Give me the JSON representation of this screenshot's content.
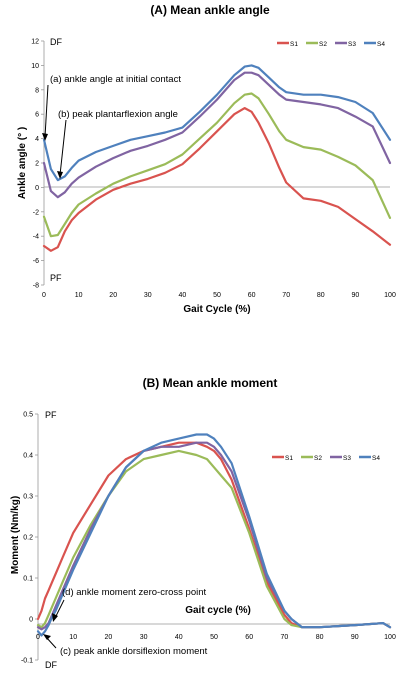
{
  "chart_data": [
    {
      "type": "line",
      "title": "(A) Mean ankle angle",
      "xlabel": "Gait Cycle (%)",
      "ylabel": "Ankle angle (° )",
      "xlim": [
        0,
        100
      ],
      "ylim": [
        -8,
        12
      ],
      "xticks": [
        0,
        10,
        20,
        30,
        40,
        50,
        60,
        70,
        80,
        90,
        100
      ],
      "yticks": [
        -8,
        -6,
        -4,
        -2,
        0,
        2,
        4,
        6,
        8,
        10,
        12
      ],
      "grid": false,
      "legend_position": "top-right",
      "top_axis_label": "DF",
      "bottom_axis_label": "PF",
      "x": [
        0,
        2,
        4,
        6,
        8,
        10,
        15,
        20,
        25,
        30,
        35,
        40,
        45,
        50,
        55,
        58,
        60,
        62,
        65,
        68,
        70,
        75,
        80,
        85,
        90,
        95,
        100
      ],
      "series": [
        {
          "name": "S1",
          "color": "#d9534f",
          "values": [
            -4.8,
            -5.2,
            -4.9,
            -3.6,
            -2.7,
            -2.1,
            -1.0,
            -0.2,
            0.3,
            0.7,
            1.2,
            1.9,
            3.2,
            4.6,
            6.0,
            6.5,
            6.2,
            5.3,
            3.6,
            1.6,
            0.4,
            -0.9,
            -1.1,
            -1.6,
            -2.6,
            -3.6,
            -4.7
          ]
        },
        {
          "name": "S2",
          "color": "#9bbb59",
          "values": [
            -2.4,
            -4.0,
            -3.9,
            -3.0,
            -2.1,
            -1.4,
            -0.5,
            0.3,
            0.9,
            1.4,
            1.9,
            2.7,
            4.0,
            5.3,
            6.9,
            7.6,
            7.7,
            7.3,
            6.0,
            4.6,
            3.9,
            3.3,
            3.1,
            2.5,
            1.8,
            0.6,
            -2.5
          ]
        },
        {
          "name": "S3",
          "color": "#8064a2",
          "values": [
            2.0,
            -0.3,
            -0.8,
            -0.4,
            0.3,
            0.8,
            1.7,
            2.4,
            3.0,
            3.4,
            3.9,
            4.5,
            5.8,
            7.2,
            8.8,
            9.4,
            9.4,
            9.2,
            8.4,
            7.6,
            7.2,
            7.0,
            6.8,
            6.5,
            5.8,
            5.0,
            2.0
          ]
        },
        {
          "name": "S4",
          "color": "#4f81bd",
          "values": [
            3.9,
            1.5,
            0.6,
            0.9,
            1.6,
            2.2,
            2.9,
            3.4,
            3.9,
            4.2,
            4.5,
            4.9,
            6.2,
            7.6,
            9.2,
            9.9,
            10.0,
            9.8,
            9.0,
            8.2,
            7.8,
            7.6,
            7.6,
            7.4,
            7.0,
            6.1,
            3.9
          ]
        }
      ],
      "annotations": [
        {
          "text": "(a) ankle angle at initial contact",
          "x": 0,
          "y": 3.9
        },
        {
          "text": "(b) peak plantarflexion angle",
          "x": 5,
          "y": 0.6
        }
      ]
    },
    {
      "type": "line",
      "title": "(B) Mean ankle moment",
      "xlabel": "Gait cycle (%)",
      "ylabel": "Moment (Nm/kg)",
      "xlim": [
        0,
        100
      ],
      "ylim": [
        -0.1,
        0.5
      ],
      "xticks": [
        0,
        10,
        20,
        30,
        40,
        50,
        60,
        70,
        80,
        90,
        100
      ],
      "yticks": [
        -0.1,
        0,
        0.1,
        0.2,
        0.3,
        0.4,
        0.5
      ],
      "ytick_labels": [
        "-0.1",
        "0",
        "0.1",
        "0.2",
        "0.3",
        "0.4",
        "0.5"
      ],
      "grid": false,
      "legend_position": "top-right",
      "top_axis_label": "PF",
      "bottom_axis_label": "DF",
      "x": [
        0,
        1,
        2,
        3,
        4,
        5,
        7,
        10,
        15,
        20,
        25,
        30,
        35,
        40,
        45,
        48,
        50,
        52,
        55,
        60,
        65,
        70,
        72,
        75,
        80,
        90,
        98,
        100
      ],
      "series": [
        {
          "name": "S1",
          "color": "#d9534f",
          "values": [
            0.0,
            0.02,
            0.05,
            0.07,
            0.09,
            0.11,
            0.15,
            0.21,
            0.28,
            0.35,
            0.39,
            0.41,
            0.42,
            0.43,
            0.43,
            0.42,
            0.41,
            0.39,
            0.34,
            0.22,
            0.09,
            0.01,
            -0.01,
            -0.02,
            -0.02,
            -0.015,
            -0.01,
            -0.02
          ]
        },
        {
          "name": "S2",
          "color": "#9bbb59",
          "values": [
            -0.015,
            -0.02,
            -0.01,
            0.01,
            0.03,
            0.05,
            0.09,
            0.15,
            0.23,
            0.3,
            0.36,
            0.39,
            0.4,
            0.41,
            0.4,
            0.39,
            0.37,
            0.35,
            0.32,
            0.21,
            0.08,
            0.0,
            -0.015,
            -0.02,
            -0.02,
            -0.015,
            -0.01,
            -0.02
          ]
        },
        {
          "name": "S3",
          "color": "#8064a2",
          "values": [
            -0.02,
            -0.025,
            -0.02,
            -0.01,
            0.01,
            0.03,
            0.07,
            0.13,
            0.22,
            0.3,
            0.37,
            0.41,
            0.42,
            0.42,
            0.43,
            0.43,
            0.42,
            0.4,
            0.36,
            0.24,
            0.1,
            0.02,
            0.0,
            -0.02,
            -0.02,
            -0.015,
            -0.01,
            -0.02
          ]
        },
        {
          "name": "S4",
          "color": "#4f81bd",
          "values": [
            -0.03,
            -0.04,
            -0.03,
            -0.015,
            0.005,
            0.02,
            0.06,
            0.12,
            0.21,
            0.3,
            0.37,
            0.41,
            0.43,
            0.44,
            0.45,
            0.45,
            0.44,
            0.42,
            0.38,
            0.25,
            0.11,
            0.02,
            0.0,
            -0.02,
            -0.02,
            -0.015,
            -0.01,
            -0.02
          ]
        }
      ],
      "annotations": [
        {
          "text": "(d) ankle moment zero-cross point",
          "x": 4,
          "y": 0.0
        },
        {
          "text": "(c) peak ankle dorsiflexion moment",
          "x": 1,
          "y": -0.04
        }
      ]
    }
  ]
}
